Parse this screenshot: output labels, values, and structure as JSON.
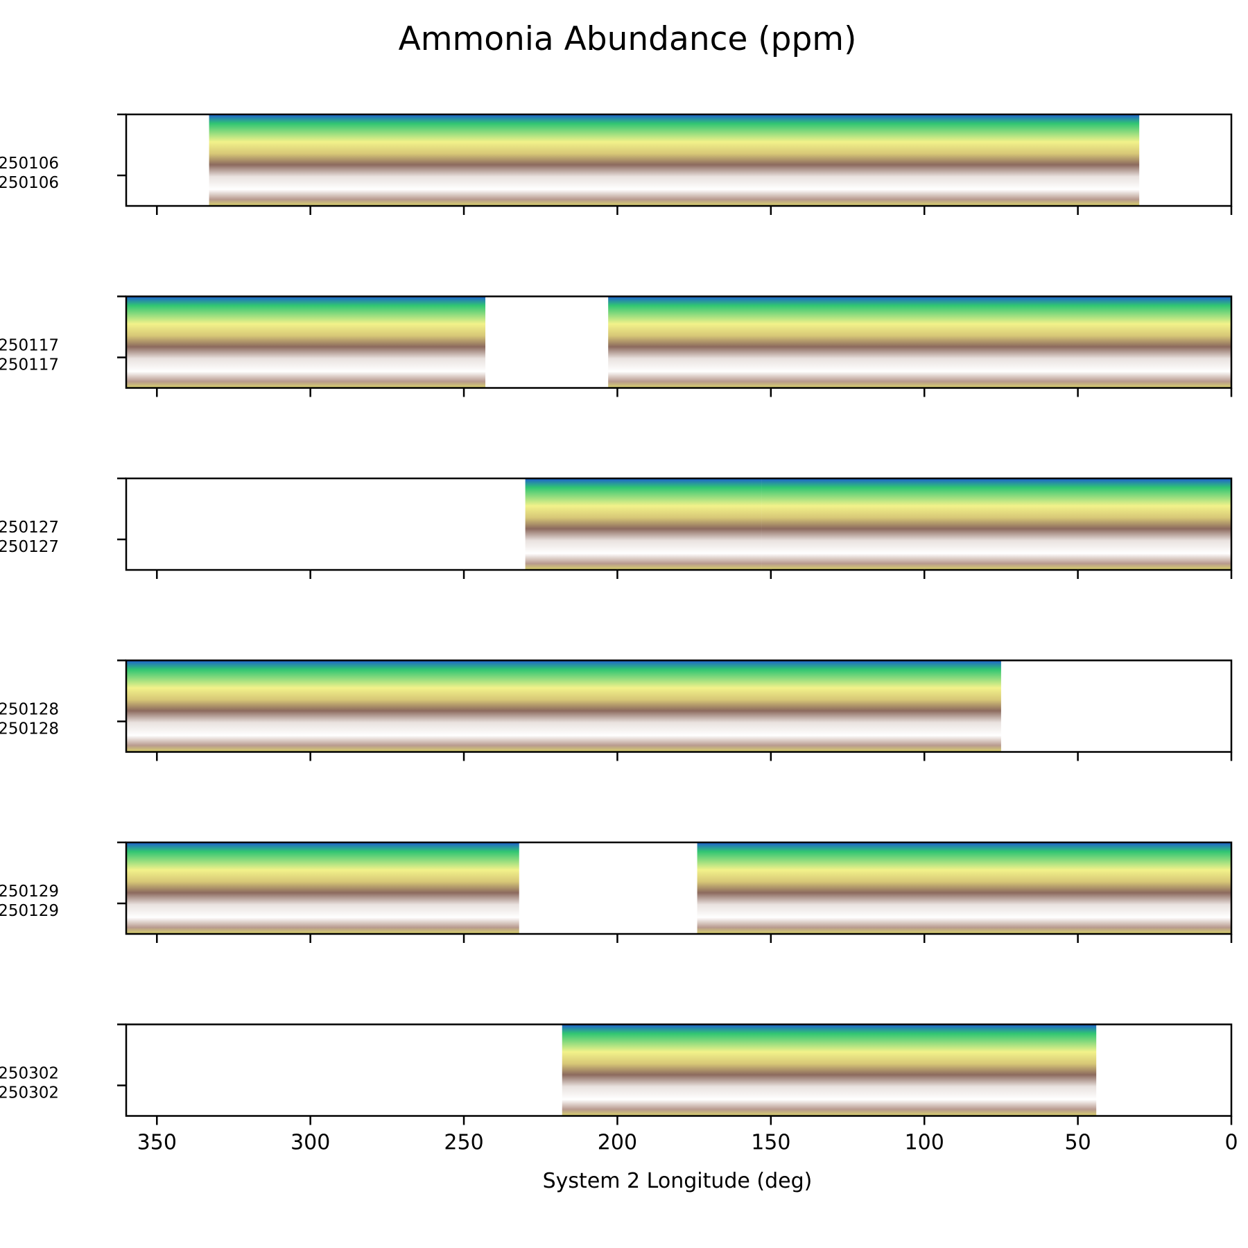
{
  "chart_data": {
    "type": "heatmap",
    "title": "Ammonia Abundance (ppm)",
    "xlabel": "System 2 Longitude (deg)",
    "ylabel": "",
    "xlim": [
      360,
      0
    ],
    "x_reversed": true,
    "x_ticks": [
      350,
      300,
      250,
      200,
      150,
      100,
      50,
      0
    ],
    "grid": false,
    "colors": {
      "background": "#ffffff",
      "low": "#ffffff",
      "mid_low": "#8c6a5e",
      "mid": "#d7c777",
      "mid_high": "#f2f28a",
      "high": "#31c672",
      "highest": "#1f5fd0"
    },
    "panels": [
      {
        "label_top": "250106",
        "label_bottom": "250106",
        "coverage": [
          [
            333,
            30
          ]
        ]
      },
      {
        "label_top": "250117",
        "label_bottom": "250117",
        "coverage": [
          [
            360,
            243
          ],
          [
            203,
            0
          ]
        ]
      },
      {
        "label_top": "250127",
        "label_bottom": "250127",
        "coverage": [
          [
            230,
            153
          ],
          [
            153,
            0
          ]
        ]
      },
      {
        "label_top": "250128",
        "label_bottom": "250128",
        "coverage": [
          [
            360,
            75
          ]
        ]
      },
      {
        "label_top": "250129",
        "label_bottom": "250129",
        "coverage": [
          [
            360,
            232
          ],
          [
            174,
            0
          ]
        ]
      },
      {
        "label_top": "250302",
        "label_bottom": "250302",
        "coverage": [
          [
            218,
            44
          ]
        ]
      }
    ]
  }
}
